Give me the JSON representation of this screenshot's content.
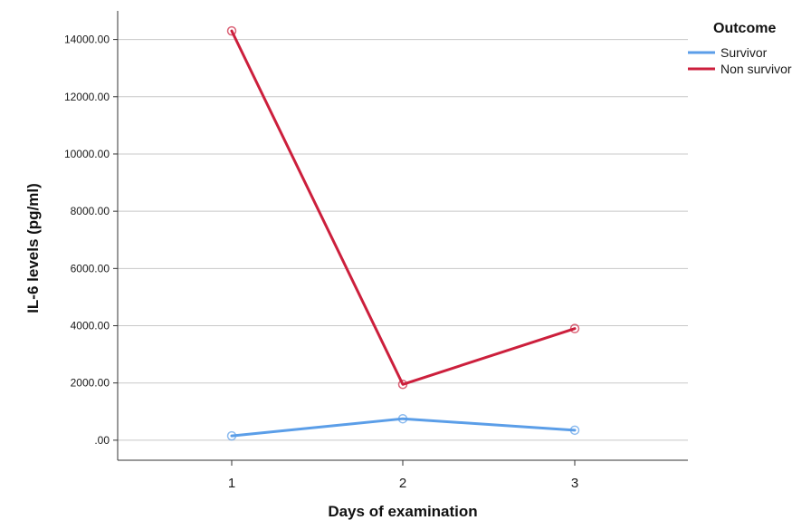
{
  "chart_data": {
    "type": "line",
    "xlabel": "Days of examination",
    "ylabel": "IL-6 levels (pg/ml)",
    "x": [
      "1",
      "2",
      "3"
    ],
    "ylim": [
      -700,
      15000
    ],
    "yticks": [
      0,
      2000,
      4000,
      6000,
      8000,
      10000,
      12000,
      14000
    ],
    "ytick_labels": [
      ".00",
      "2000.00",
      "4000.00",
      "6000.00",
      "8000.00",
      "10000.00",
      "12000.00",
      "14000.00"
    ],
    "grid": "horizontal",
    "markers": "open-circle",
    "legend": {
      "title": "Outcome",
      "position": "top-right"
    },
    "series": [
      {
        "name": "Survivor",
        "color": "#5b9ee8",
        "values": [
          150,
          750,
          350
        ]
      },
      {
        "name": "Non survivor",
        "color": "#cc1f3c",
        "values": [
          14300,
          1950,
          3900
        ]
      }
    ]
  }
}
